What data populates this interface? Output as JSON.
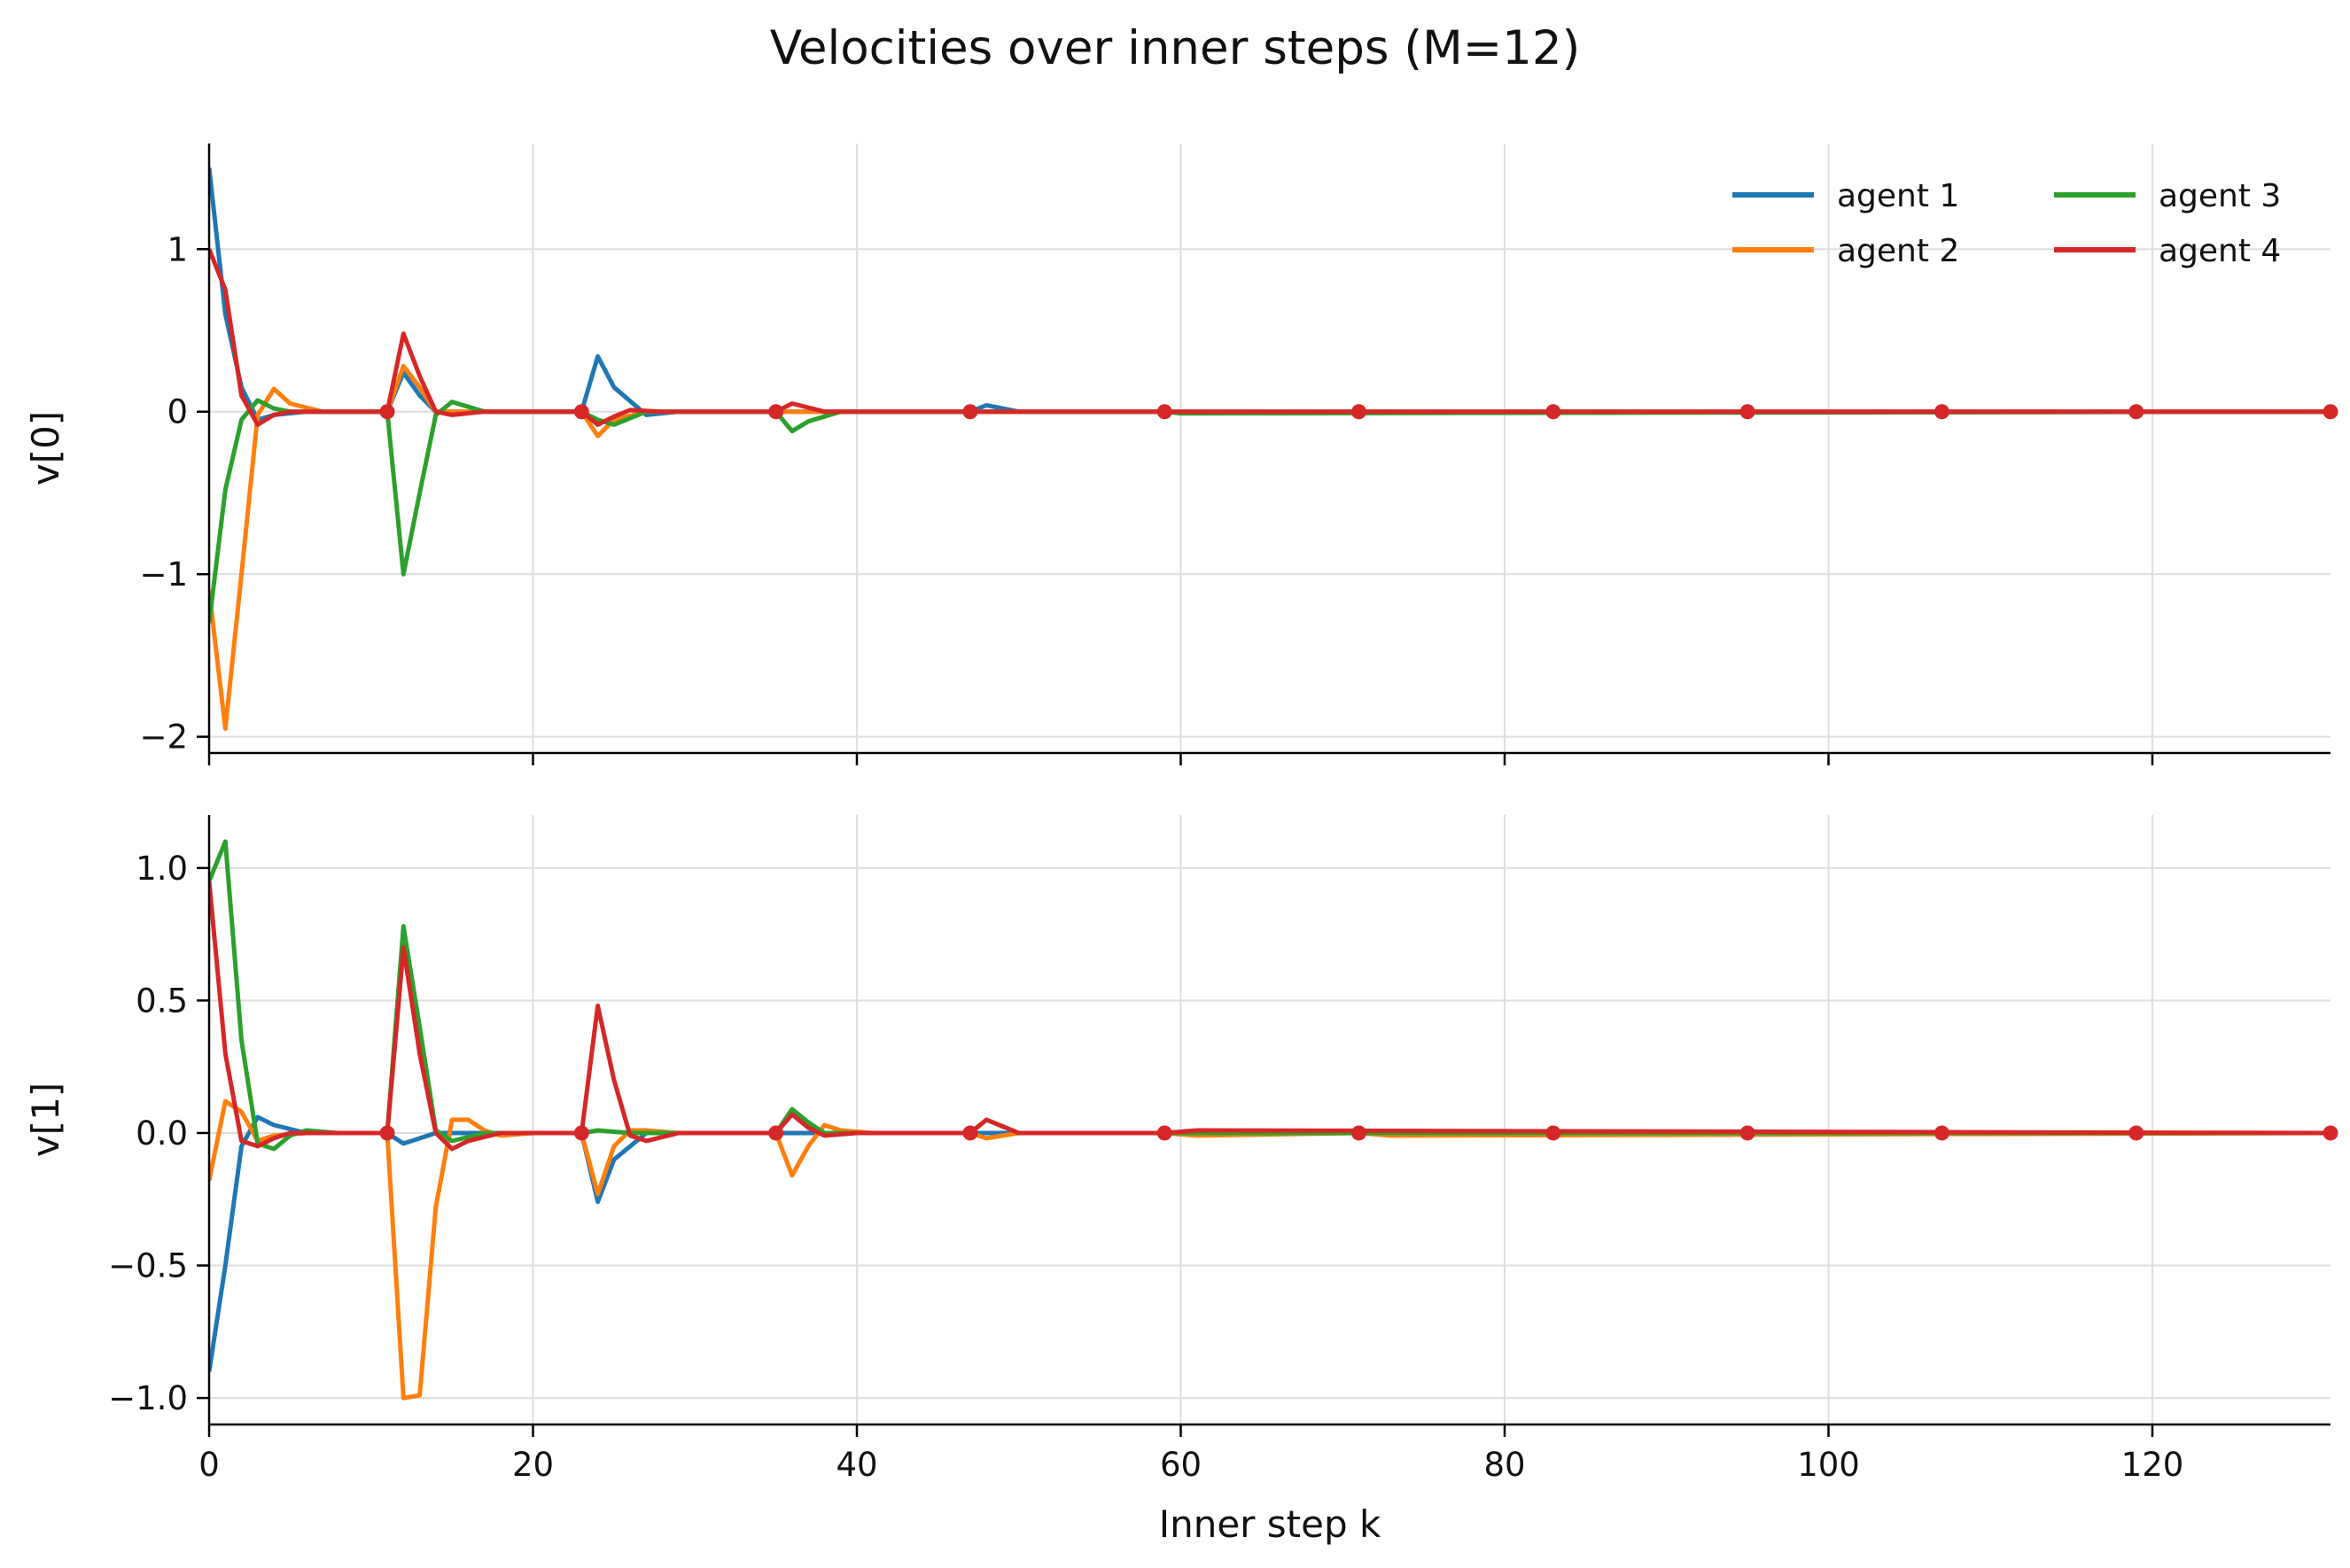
{
  "chart_data": {
    "type": "line",
    "title": "Velocities over inner steps (M=12)",
    "xlabel": "Inner step k",
    "xlim": [
      0,
      131
    ],
    "xticks": [
      0,
      20,
      40,
      60,
      80,
      100,
      120
    ],
    "xtick_labels": [
      "0",
      "20",
      "40",
      "60",
      "80",
      "100",
      "120"
    ],
    "grid": true,
    "legend": {
      "position": "top-right",
      "columns": 2,
      "entries": [
        "agent 1",
        "agent 2",
        "agent 3",
        "agent 4"
      ]
    },
    "colors": {
      "agent 1": "#1f77b4",
      "agent 2": "#ff7f0e",
      "agent 3": "#2ca02c",
      "agent 4": "#d62728"
    },
    "marker_points": {
      "description": "dots on agent 4 line every M steps",
      "x": [
        11,
        23,
        35,
        47,
        59,
        71,
        83,
        95,
        107,
        119,
        131
      ]
    },
    "panels": [
      {
        "ylabel": "v[0]",
        "ylim": [
          -2.1,
          1.65
        ],
        "yticks": [
          -2,
          -1,
          0,
          1
        ],
        "ytick_labels": [
          "−2",
          "−1",
          "0",
          "1"
        ],
        "series": [
          {
            "name": "agent 1",
            "x": [
              0,
              1,
              2,
              3,
              4,
              6,
              8,
              11,
              12,
              13,
              14,
              15,
              18,
              23,
              24,
              25,
              27,
              29,
              35,
              36,
              38,
              47,
              48,
              50,
              131
            ],
            "y": [
              1.5,
              0.6,
              0.15,
              -0.05,
              -0.02,
              0.0,
              0.0,
              0.0,
              0.24,
              0.1,
              0.0,
              0.0,
              0.0,
              0.0,
              0.34,
              0.15,
              -0.02,
              0.0,
              0.0,
              0.0,
              0.0,
              0.0,
              0.04,
              0.0,
              0.0
            ]
          },
          {
            "name": "agent 2",
            "x": [
              0,
              1,
              2,
              3,
              4,
              5,
              7,
              11,
              12,
              13,
              14,
              15,
              18,
              23,
              24,
              25,
              27,
              29,
              35,
              38,
              47,
              50,
              131
            ],
            "y": [
              -1.1,
              -1.95,
              -1.0,
              -0.02,
              0.14,
              0.05,
              0.0,
              0.0,
              0.28,
              0.15,
              0.0,
              0.0,
              0.0,
              0.0,
              -0.15,
              -0.05,
              0.0,
              0.0,
              0.0,
              0.0,
              0.0,
              0.0,
              0.0
            ]
          },
          {
            "name": "agent 3",
            "x": [
              0,
              1,
              2,
              3,
              4,
              5,
              7,
              11,
              12,
              13,
              14,
              15,
              17,
              23,
              24,
              25,
              27,
              35,
              36,
              37,
              39,
              47,
              59,
              60,
              131
            ],
            "y": [
              -1.3,
              -0.48,
              -0.05,
              0.07,
              0.02,
              0.0,
              0.0,
              0.0,
              -1.0,
              -0.5,
              -0.02,
              0.06,
              0.0,
              0.0,
              -0.05,
              -0.08,
              0.0,
              0.0,
              -0.12,
              -0.06,
              0.0,
              0.0,
              0.0,
              -0.01,
              0.0
            ]
          },
          {
            "name": "agent 4",
            "x": [
              0,
              1,
              2,
              3,
              4,
              5,
              7,
              11,
              12,
              13,
              14,
              15,
              17,
              23,
              24,
              25,
              26,
              28,
              35,
              36,
              38,
              47,
              50,
              131
            ],
            "y": [
              1.0,
              0.75,
              0.1,
              -0.08,
              -0.02,
              0.0,
              0.0,
              0.0,
              0.48,
              0.22,
              0.0,
              -0.02,
              0.0,
              0.0,
              -0.08,
              -0.03,
              0.01,
              0.0,
              0.0,
              0.05,
              0.0,
              0.0,
              0.0,
              0.0
            ]
          }
        ]
      },
      {
        "ylabel": "v[1]",
        "ylim": [
          -1.1,
          1.2
        ],
        "yticks": [
          -1.0,
          -0.5,
          0.0,
          0.5,
          1.0
        ],
        "ytick_labels": [
          "−1.0",
          "−0.5",
          "0.0",
          "0.5",
          "1.0"
        ],
        "series": [
          {
            "name": "agent 1",
            "x": [
              0,
              1,
              2,
              3,
              4,
              6,
              8,
              11,
              12,
              14,
              16,
              18,
              23,
              24,
              25,
              27,
              29,
              35,
              36,
              38,
              47,
              50,
              131
            ],
            "y": [
              -0.9,
              -0.5,
              -0.05,
              0.06,
              0.03,
              0.0,
              0.0,
              0.0,
              -0.04,
              0.0,
              0.0,
              0.0,
              0.0,
              -0.26,
              -0.1,
              0.0,
              0.0,
              0.0,
              0.0,
              0.0,
              0.0,
              0.0,
              0.0
            ]
          },
          {
            "name": "agent 2",
            "x": [
              0,
              1,
              2,
              3,
              4,
              6,
              8,
              11,
              12,
              13,
              14,
              15,
              16,
              17,
              18,
              20,
              23,
              24,
              25,
              26,
              27,
              29,
              35,
              36,
              37,
              38,
              39,
              41,
              47,
              48,
              50,
              59,
              61,
              71,
              73,
              131
            ],
            "y": [
              -0.18,
              0.12,
              0.08,
              -0.03,
              -0.01,
              0.0,
              0.0,
              0.0,
              -1.0,
              -0.99,
              -0.28,
              0.05,
              0.05,
              0.01,
              -0.01,
              0.0,
              0.0,
              -0.23,
              -0.05,
              0.01,
              0.01,
              0.0,
              0.0,
              -0.16,
              -0.05,
              0.03,
              0.01,
              0.0,
              0.0,
              -0.02,
              0.0,
              0.0,
              -0.01,
              0.0,
              -0.01,
              0.0
            ]
          },
          {
            "name": "agent 3",
            "x": [
              0,
              1,
              2,
              3,
              4,
              5,
              6,
              8,
              11,
              12,
              13,
              14,
              15,
              17,
              23,
              24,
              26,
              28,
              35,
              36,
              37,
              38,
              40,
              47,
              48,
              50,
              131
            ],
            "y": [
              0.95,
              1.1,
              0.35,
              -0.04,
              -0.06,
              -0.01,
              0.01,
              0.0,
              0.0,
              0.78,
              0.4,
              0.01,
              -0.03,
              0.0,
              0.0,
              0.01,
              0.0,
              0.0,
              0.0,
              0.09,
              0.04,
              0.0,
              0.0,
              0.0,
              0.05,
              0.0,
              0.0
            ]
          },
          {
            "name": "agent 4",
            "x": [
              0,
              1,
              2,
              3,
              4,
              5,
              7,
              11,
              12,
              13,
              14,
              15,
              16,
              18,
              23,
              24,
              25,
              26,
              27,
              29,
              35,
              36,
              37,
              38,
              40,
              47,
              48,
              50,
              59,
              61,
              131
            ],
            "y": [
              0.95,
              0.3,
              -0.03,
              -0.05,
              -0.02,
              0.0,
              0.0,
              0.0,
              0.7,
              0.3,
              0.0,
              -0.06,
              -0.03,
              0.0,
              0.0,
              0.48,
              0.2,
              -0.01,
              -0.03,
              0.0,
              0.0,
              0.07,
              0.02,
              -0.01,
              0.0,
              0.0,
              0.05,
              0.0,
              0.0,
              0.01,
              0.0
            ]
          }
        ]
      }
    ]
  }
}
